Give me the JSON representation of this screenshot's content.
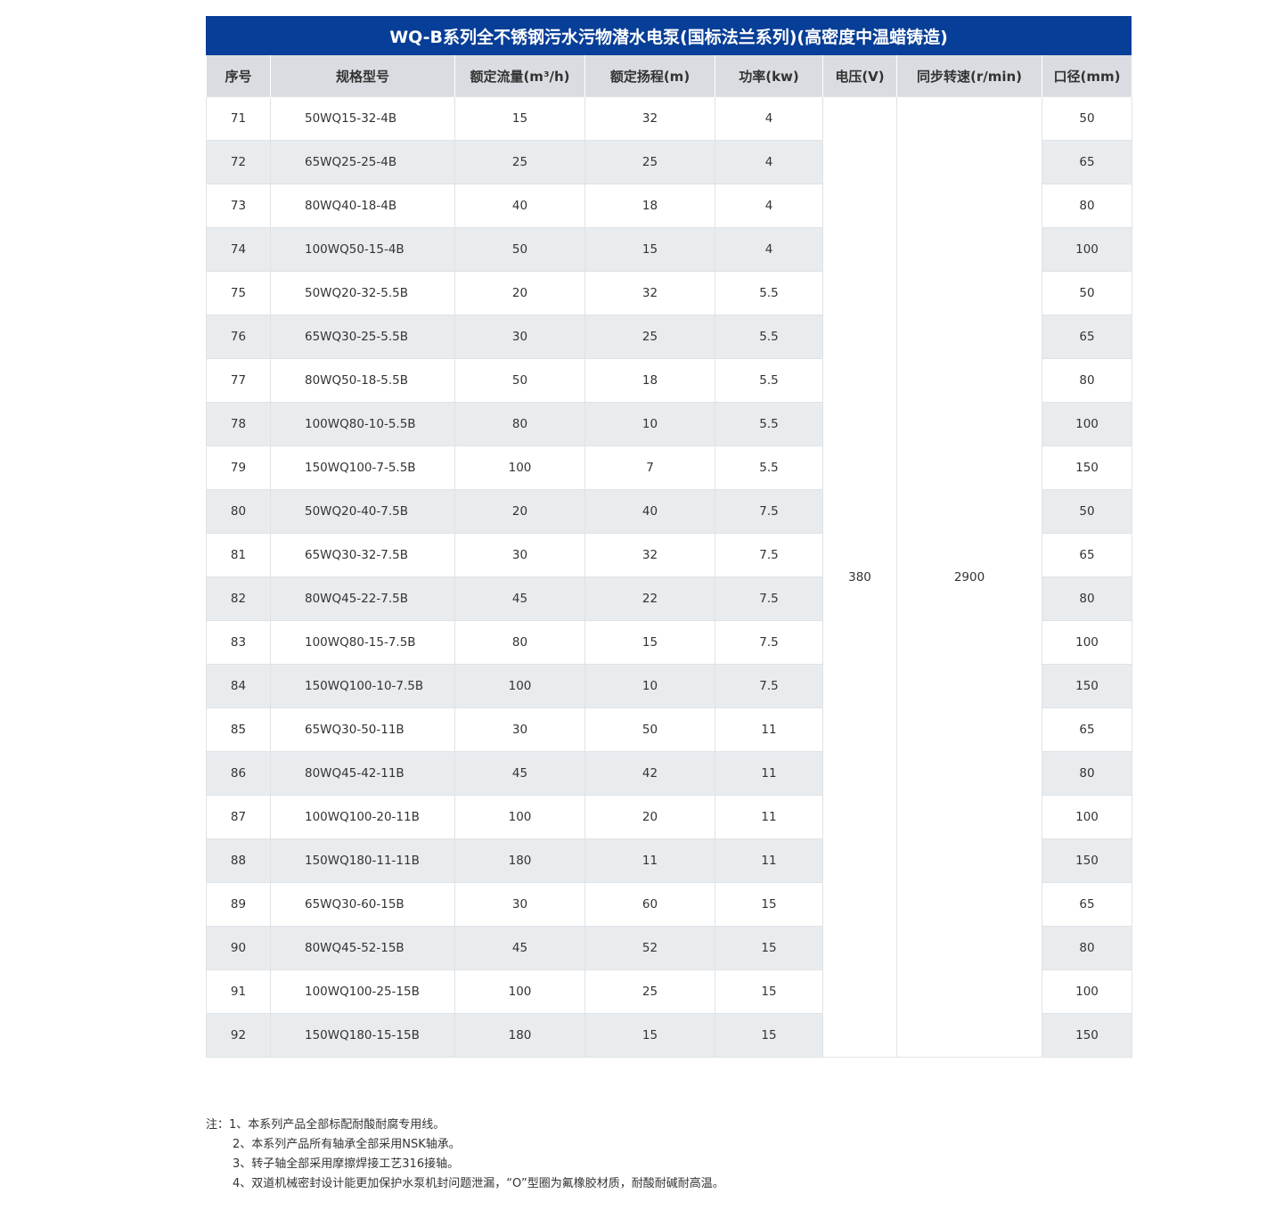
{
  "title": "WQ-B系列全不锈钢污水污物潜水电泵(国标法兰系列)(高密度中温蜡铸造)",
  "columns": [
    "序号",
    "规格型号",
    "额定流量(m³/h)",
    "额定扬程(m)",
    "功率(kw)",
    "电压(V)",
    "同步转速(r/min)",
    "口径(mm)"
  ],
  "voltage": "380",
  "speed": "2900",
  "rows": [
    [
      "71",
      "50WQ15-32-4B",
      "15",
      "32",
      "4",
      "50"
    ],
    [
      "72",
      "65WQ25-25-4B",
      "25",
      "25",
      "4",
      "65"
    ],
    [
      "73",
      "80WQ40-18-4B",
      "40",
      "18",
      "4",
      "80"
    ],
    [
      "74",
      "100WQ50-15-4B",
      "50",
      "15",
      "4",
      "100"
    ],
    [
      "75",
      "50WQ20-32-5.5B",
      "20",
      "32",
      "5.5",
      "50"
    ],
    [
      "76",
      "65WQ30-25-5.5B",
      "30",
      "25",
      "5.5",
      "65"
    ],
    [
      "77",
      "80WQ50-18-5.5B",
      "50",
      "18",
      "5.5",
      "80"
    ],
    [
      "78",
      "100WQ80-10-5.5B",
      "80",
      "10",
      "5.5",
      "100"
    ],
    [
      "79",
      "150WQ100-7-5.5B",
      "100",
      "7",
      "5.5",
      "150"
    ],
    [
      "80",
      "50WQ20-40-7.5B",
      "20",
      "40",
      "7.5",
      "50"
    ],
    [
      "81",
      "65WQ30-32-7.5B",
      "30",
      "32",
      "7.5",
      "65"
    ],
    [
      "82",
      "80WQ45-22-7.5B",
      "45",
      "22",
      "7.5",
      "80"
    ],
    [
      "83",
      "100WQ80-15-7.5B",
      "80",
      "15",
      "7.5",
      "100"
    ],
    [
      "84",
      "150WQ100-10-7.5B",
      "100",
      "10",
      "7.5",
      "150"
    ],
    [
      "85",
      "65WQ30-50-11B",
      "30",
      "50",
      "11",
      "65"
    ],
    [
      "86",
      "80WQ45-42-11B",
      "45",
      "42",
      "11",
      "80"
    ],
    [
      "87",
      "100WQ100-20-11B",
      "100",
      "20",
      "11",
      "100"
    ],
    [
      "88",
      "150WQ180-11-11B",
      "180",
      "11",
      "11",
      "150"
    ],
    [
      "89",
      "65WQ30-60-15B",
      "30",
      "60",
      "15",
      "65"
    ],
    [
      "90",
      "80WQ45-52-15B",
      "45",
      "52",
      "15",
      "80"
    ],
    [
      "91",
      "100WQ100-25-15B",
      "100",
      "25",
      "15",
      "100"
    ],
    [
      "92",
      "150WQ180-15-15B",
      "180",
      "15",
      "15",
      "150"
    ]
  ],
  "notes": [
    "注：1、本系列产品全部标配耐酸耐腐专用线。",
    "2、本系列产品所有轴承全部采用NSK轴承。",
    "3、转子轴全部采用摩擦焊接工艺316接轴。",
    "4、双道机械密封设计能更加保护水泵机封问题泄漏，“O”型圈为氟橡胶材质，耐酸耐碱耐高温。"
  ]
}
